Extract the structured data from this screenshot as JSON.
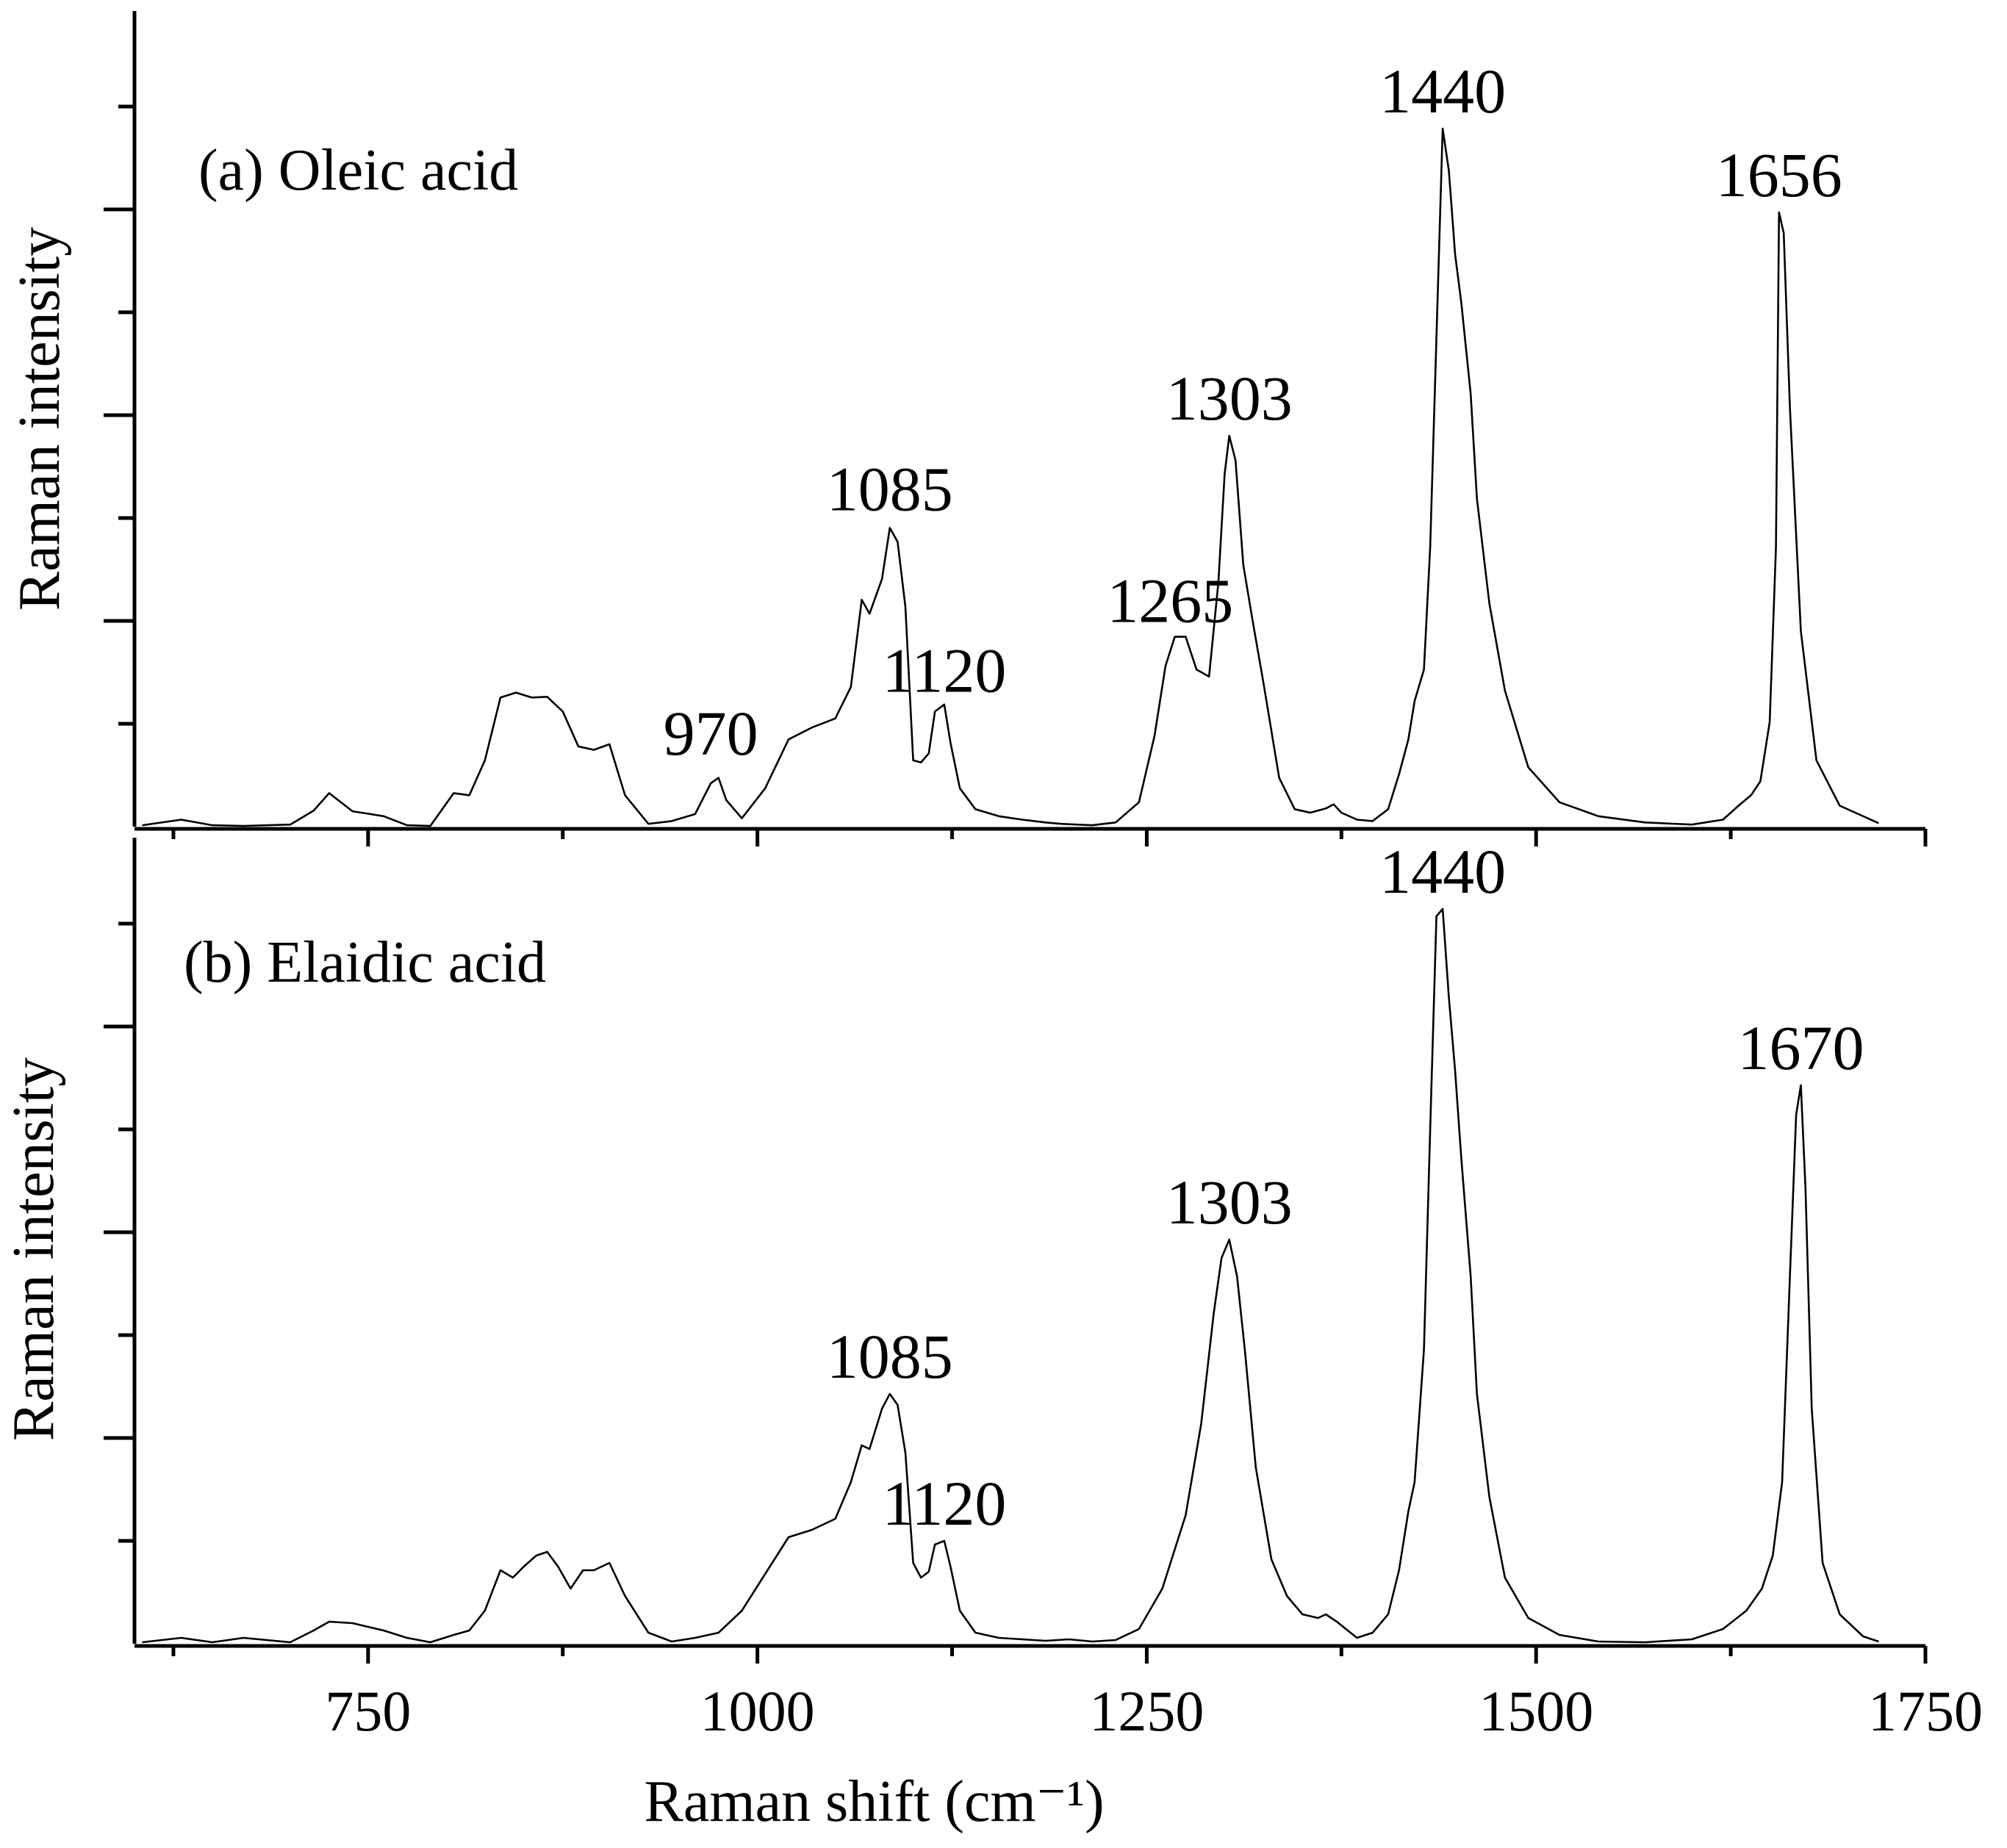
{
  "chart_data": [
    {
      "type": "line",
      "panel": "a",
      "title": "(a) Oleic acid",
      "xlabel": "Raman shift (cm⁻¹)",
      "ylabel": "Raman intensity",
      "xlim": [
        600,
        1750
      ],
      "ylim": [
        0,
        100
      ],
      "x_ticks": [
        750,
        1000,
        1250,
        1500,
        1750
      ],
      "annotations": [
        {
          "text": "970",
          "x": 970,
          "y": 8
        },
        {
          "text": "1085",
          "x": 1085,
          "y": 43
        },
        {
          "text": "1120",
          "x": 1120,
          "y": 17
        },
        {
          "text": "1265",
          "x": 1265,
          "y": 27
        },
        {
          "text": "1303",
          "x": 1303,
          "y": 56
        },
        {
          "text": "1440",
          "x": 1440,
          "y": 100
        },
        {
          "text": "1656",
          "x": 1656,
          "y": 88
        }
      ],
      "series": [
        {
          "name": "Oleic acid",
          "x": [
            605,
            630,
            650,
            670,
            700,
            715,
            725,
            740,
            760,
            775,
            790,
            805,
            815,
            825,
            835,
            845,
            855,
            865,
            875,
            885,
            895,
            905,
            915,
            930,
            945,
            960,
            970,
            975,
            980,
            990,
            1005,
            1020,
            1035,
            1050,
            1060,
            1067,
            1072,
            1080,
            1085,
            1090,
            1095,
            1100,
            1105,
            1110,
            1114,
            1120,
            1124,
            1130,
            1140,
            1155,
            1170,
            1185,
            1195,
            1205,
            1215,
            1230,
            1245,
            1255,
            1262,
            1268,
            1275,
            1282,
            1290,
            1296,
            1300,
            1303,
            1307,
            1312,
            1318,
            1325,
            1335,
            1345,
            1355,
            1365,
            1370,
            1375,
            1385,
            1395,
            1405,
            1412,
            1418,
            1422,
            1428,
            1432,
            1436,
            1440,
            1444,
            1448,
            1452,
            1458,
            1462,
            1470,
            1480,
            1495,
            1515,
            1540,
            1570,
            1600,
            1620,
            1630,
            1638,
            1644,
            1650,
            1654,
            1656,
            1659,
            1663,
            1670,
            1680,
            1695,
            1720
          ],
          "values": [
            0.2,
            1.0,
            0.2,
            0.1,
            0.3,
            2.3,
            4.8,
            2.2,
            1.5,
            0.2,
            0.1,
            4.8,
            4.5,
            9.5,
            18.5,
            19.2,
            18.5,
            18.6,
            16.5,
            11.5,
            11.0,
            11.8,
            4.5,
            0.4,
            0.8,
            1.8,
            6.2,
            7.0,
            3.8,
            1.2,
            5.5,
            12.5,
            14.2,
            15.5,
            20.0,
            32.5,
            30.5,
            35.5,
            42.8,
            40.8,
            31.5,
            9.5,
            9.2,
            10.5,
            16.5,
            17.5,
            12.0,
            5.5,
            2.5,
            1.5,
            1.0,
            0.6,
            0.4,
            0.3,
            0.2,
            0.6,
            3.5,
            13.0,
            23.0,
            27.2,
            27.2,
            22.5,
            21.5,
            35.0,
            50.5,
            56.0,
            52.5,
            37.5,
            29.5,
            20.5,
            7.0,
            2.5,
            2.0,
            2.6,
            3.2,
            2.0,
            1.0,
            0.8,
            2.5,
            7.5,
            12.5,
            18.0,
            22.5,
            40.0,
            70.0,
            100.0,
            94.0,
            82.0,
            75.0,
            62.0,
            47.0,
            32.0,
            19.5,
            8.5,
            3.5,
            1.5,
            0.6,
            0.3,
            1.0,
            3.0,
            4.5,
            6.5,
            15.0,
            40.0,
            88.0,
            85.0,
            60.0,
            28.0,
            9.5,
            3.0,
            0.5
          ]
        }
      ]
    },
    {
      "type": "line",
      "panel": "b",
      "title": "(b) Elaidic acid",
      "xlabel": "Raman shift (cm⁻¹)",
      "ylabel": "Raman intensity",
      "xlim": [
        600,
        1750
      ],
      "ylim": [
        0,
        100
      ],
      "x_ticks": [
        750,
        1000,
        1250,
        1500,
        1750
      ],
      "annotations": [
        {
          "text": "1085",
          "x": 1085,
          "y": 34
        },
        {
          "text": "1120",
          "x": 1120,
          "y": 14
        },
        {
          "text": "1303",
          "x": 1303,
          "y": 55
        },
        {
          "text": "1440",
          "x": 1440,
          "y": 100
        },
        {
          "text": "1670",
          "x": 1670,
          "y": 76
        }
      ],
      "series": [
        {
          "name": "Elaidic acid",
          "x": [
            605,
            630,
            650,
            670,
            700,
            715,
            725,
            740,
            760,
            775,
            790,
            805,
            815,
            825,
            835,
            843,
            850,
            858,
            865,
            872,
            880,
            888,
            895,
            905,
            915,
            930,
            945,
            960,
            975,
            990,
            1005,
            1020,
            1035,
            1050,
            1060,
            1067,
            1072,
            1080,
            1085,
            1090,
            1095,
            1100,
            1105,
            1110,
            1114,
            1120,
            1124,
            1130,
            1140,
            1155,
            1170,
            1185,
            1200,
            1215,
            1230,
            1245,
            1260,
            1275,
            1285,
            1293,
            1298,
            1303,
            1308,
            1313,
            1320,
            1330,
            1340,
            1350,
            1360,
            1365,
            1372,
            1385,
            1395,
            1405,
            1412,
            1418,
            1422,
            1428,
            1432,
            1436,
            1440,
            1444,
            1448,
            1452,
            1458,
            1462,
            1470,
            1480,
            1495,
            1515,
            1540,
            1570,
            1600,
            1620,
            1635,
            1645,
            1652,
            1658,
            1663,
            1667,
            1670,
            1673,
            1677,
            1684,
            1695,
            1710,
            1720
          ],
          "values": [
            0.2,
            0.8,
            0.2,
            0.8,
            0.2,
            1.8,
            3.0,
            2.8,
            1.8,
            0.8,
            0.2,
            1.2,
            1.8,
            4.5,
            10.0,
            9.0,
            10.5,
            12.0,
            12.5,
            10.5,
            7.5,
            10.0,
            10.0,
            11.0,
            6.5,
            1.5,
            0.3,
            0.8,
            1.5,
            4.5,
            9.5,
            14.5,
            15.5,
            17.0,
            22.0,
            27.0,
            26.5,
            32.0,
            34.0,
            32.5,
            26.0,
            11.0,
            9.0,
            9.8,
            13.5,
            14.0,
            10.5,
            4.5,
            1.5,
            0.8,
            0.6,
            0.4,
            0.6,
            0.3,
            0.5,
            2.0,
            7.5,
            17.5,
            30.0,
            45.0,
            52.5,
            55.0,
            50.0,
            40.0,
            24.0,
            11.5,
            6.5,
            4.0,
            3.5,
            4.0,
            3.0,
            0.8,
            1.5,
            4.0,
            10.0,
            18.0,
            22.0,
            40.0,
            70.0,
            99.0,
            100.0,
            88.0,
            78.0,
            66.0,
            50.0,
            34.0,
            20.0,
            9.0,
            3.5,
            1.2,
            0.3,
            0.2,
            0.6,
            2.0,
            4.5,
            7.5,
            12.0,
            22.0,
            50.0,
            72.0,
            76.0,
            62.0,
            32.0,
            11.0,
            4.0,
            1.0,
            0.3
          ]
        }
      ]
    }
  ]
}
